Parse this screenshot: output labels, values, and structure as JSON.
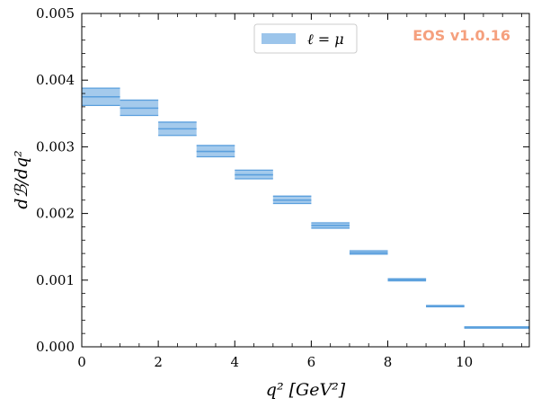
{
  "chart_data": {
    "type": "bar",
    "xlabel": "q² [GeV²]",
    "ylabel": "dℬ/dq²",
    "xlim": [
      0,
      11.7
    ],
    "ylim": [
      0,
      0.005
    ],
    "x_ticks": [
      0,
      2,
      4,
      6,
      8,
      10
    ],
    "x_tick_labels": [
      "0",
      "2",
      "4",
      "6",
      "8",
      "10"
    ],
    "y_ticks": [
      0,
      0.001,
      0.002,
      0.003,
      0.004,
      0.005
    ],
    "y_tick_labels": [
      "0.000",
      "0.001",
      "0.002",
      "0.003",
      "0.004",
      "0.005"
    ],
    "legend_position": "top-center",
    "watermark": "EOS v1.0.16",
    "series": [
      {
        "name": "ℓ = μ",
        "color": "#5a9fdd",
        "bins": [
          {
            "x0": 0,
            "x1": 1,
            "center": 0.00375,
            "lo": 0.00362,
            "hi": 0.00388
          },
          {
            "x0": 1,
            "x1": 2,
            "center": 0.00358,
            "lo": 0.00347,
            "hi": 0.0037
          },
          {
            "x0": 2,
            "x1": 3,
            "center": 0.00327,
            "lo": 0.00317,
            "hi": 0.00337
          },
          {
            "x0": 3,
            "x1": 4,
            "center": 0.00293,
            "lo": 0.00285,
            "hi": 0.00302
          },
          {
            "x0": 4,
            "x1": 5,
            "center": 0.00258,
            "lo": 0.00252,
            "hi": 0.00265
          },
          {
            "x0": 5,
            "x1": 6,
            "center": 0.0022,
            "lo": 0.00215,
            "hi": 0.00226
          },
          {
            "x0": 6,
            "x1": 7,
            "center": 0.00182,
            "lo": 0.00178,
            "hi": 0.00186
          },
          {
            "x0": 7,
            "x1": 8,
            "center": 0.00141,
            "lo": 0.00139,
            "hi": 0.00144
          },
          {
            "x0": 8,
            "x1": 9,
            "center": 0.00101,
            "lo": 0.00099,
            "hi": 0.00102
          },
          {
            "x0": 9,
            "x1": 10,
            "center": 0.00061,
            "lo": 0.0006,
            "hi": 0.00062
          },
          {
            "x0": 10,
            "x1": 11.7,
            "center": 0.00029,
            "lo": 0.00028,
            "hi": 0.0003
          }
        ]
      }
    ]
  }
}
